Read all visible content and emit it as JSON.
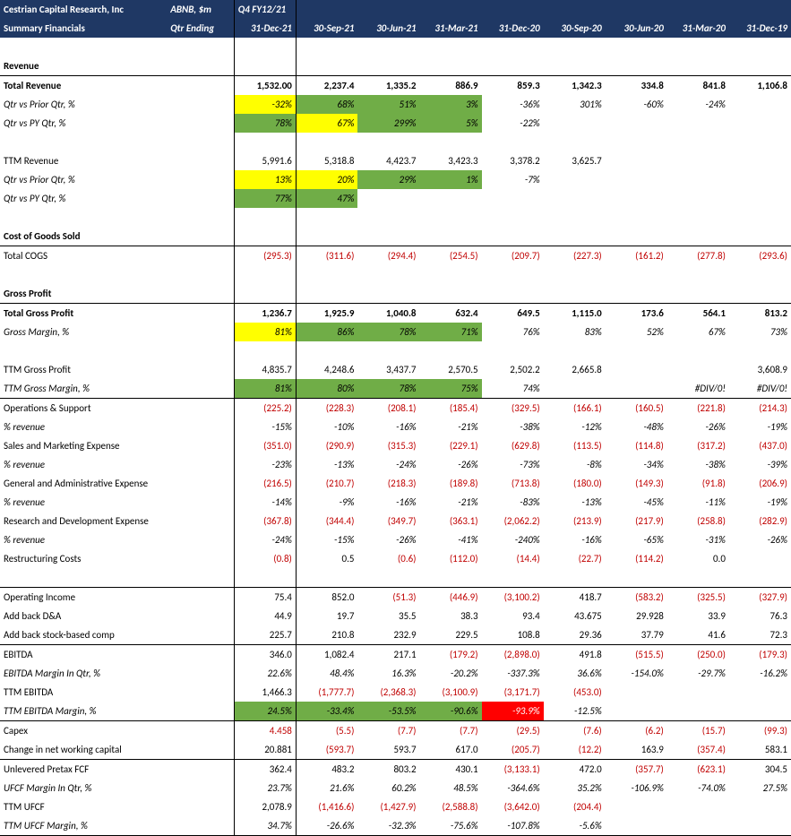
{
  "header": {
    "company": "Cestrian Capital Research, Inc",
    "ticker": "ABNB, $m",
    "subtitle": "Summary Financials",
    "qtr_ending": "Qtr Ending",
    "q4": "Q4 FY12/21",
    "dates": [
      "31-Dec-21",
      "30-Sep-21",
      "30-Jun-21",
      "31-Mar-21",
      "31-Dec-20",
      "30-Sep-20",
      "30-Jun-20",
      "31-Mar-20",
      "31-Dec-19"
    ]
  },
  "sections": {
    "revenue": "Revenue",
    "cogs": "Cost of Goods Sold",
    "gp": "Gross Profit"
  },
  "rows": {
    "total_revenue": {
      "label": "Total Revenue",
      "vals": [
        "1,532.00",
        "2,237.4",
        "1,335.2",
        "886.9",
        "859.3",
        "1,342.3",
        "334.8",
        "841.8",
        "1,106.8"
      ],
      "neg": [
        0,
        0,
        0,
        0,
        0,
        0,
        0,
        0,
        0
      ],
      "bold": 1
    },
    "rev_qoq": {
      "label": "Qtr vs Prior Qtr, %",
      "vals": [
        "-32%",
        "68%",
        "51%",
        "3%",
        "-36%",
        "301%",
        "-60%",
        "-24%",
        ""
      ],
      "neg": [
        0,
        0,
        0,
        0,
        0,
        0,
        0,
        0,
        0
      ],
      "ital": 1,
      "hl": [
        "yellow",
        "green",
        "green",
        "green",
        "",
        "",
        "",
        "",
        ""
      ]
    },
    "rev_yoy": {
      "label": "Qtr vs PY Qtr, %",
      "vals": [
        "78%",
        "67%",
        "299%",
        "5%",
        "-22%",
        "",
        "",
        "",
        ""
      ],
      "neg": [
        0,
        0,
        0,
        0,
        0,
        0,
        0,
        0,
        0
      ],
      "ital": 1,
      "hl": [
        "green",
        "yellow",
        "green",
        "green",
        "",
        "",
        "",
        "",
        ""
      ]
    },
    "ttm_rev": {
      "label": "TTM Revenue",
      "vals": [
        "5,991.6",
        "5,318.8",
        "4,423.7",
        "3,423.3",
        "3,378.2",
        "3,625.7",
        "",
        "",
        ""
      ],
      "neg": [
        0,
        0,
        0,
        0,
        0,
        0,
        0,
        0,
        0
      ]
    },
    "ttm_rev_qoq": {
      "label": "Qtr vs Prior Qtr, %",
      "vals": [
        "13%",
        "20%",
        "29%",
        "1%",
        "-7%",
        "",
        "",
        "",
        ""
      ],
      "neg": [
        0,
        0,
        0,
        0,
        0,
        0,
        0,
        0,
        0
      ],
      "ital": 1,
      "hl": [
        "yellow",
        "yellow",
        "green",
        "green",
        "",
        "",
        "",
        "",
        ""
      ]
    },
    "ttm_rev_yoy": {
      "label": "Qtr vs PY Qtr, %",
      "vals": [
        "77%",
        "47%",
        "",
        "",
        "",
        "",
        "",
        "",
        ""
      ],
      "neg": [
        0,
        0,
        0,
        0,
        0,
        0,
        0,
        0,
        0
      ],
      "ital": 1,
      "hl": [
        "green",
        "green",
        "",
        "",
        "",
        "",
        "",
        "",
        ""
      ]
    },
    "total_cogs": {
      "label": "Total COGS",
      "vals": [
        "(295.3)",
        "(311.6)",
        "(294.4)",
        "(254.5)",
        "(209.7)",
        "(227.3)",
        "(161.2)",
        "(277.8)",
        "(293.6)"
      ],
      "neg": [
        1,
        1,
        1,
        1,
        1,
        1,
        1,
        1,
        1
      ]
    },
    "total_gp": {
      "label": "Total Gross Profit",
      "vals": [
        "1,236.7",
        "1,925.9",
        "1,040.8",
        "632.4",
        "649.5",
        "1,115.0",
        "173.6",
        "564.1",
        "813.2"
      ],
      "neg": [
        0,
        0,
        0,
        0,
        0,
        0,
        0,
        0,
        0
      ],
      "bold": 1
    },
    "gm": {
      "label": "Gross Margin, %",
      "vals": [
        "81%",
        "86%",
        "78%",
        "71%",
        "76%",
        "83%",
        "52%",
        "67%",
        "73%"
      ],
      "neg": [
        0,
        0,
        0,
        0,
        0,
        0,
        0,
        0,
        0
      ],
      "ital": 1,
      "hl": [
        "yellow",
        "green",
        "green",
        "green",
        "",
        "",
        "",
        "",
        ""
      ]
    },
    "ttm_gp": {
      "label": "TTM Gross Profit",
      "vals": [
        "4,835.7",
        "4,248.6",
        "3,437.7",
        "2,570.5",
        "2,502.2",
        "2,665.8",
        "",
        "",
        "3,608.9"
      ],
      "neg": [
        0,
        0,
        0,
        0,
        0,
        0,
        0,
        0,
        0
      ]
    },
    "ttm_gm": {
      "label": "TTM Gross Margin, %",
      "vals": [
        "81%",
        "80%",
        "78%",
        "75%",
        "74%",
        "",
        "",
        "#DIV/0!",
        "#DIV/0!"
      ],
      "neg": [
        0,
        0,
        0,
        0,
        0,
        0,
        0,
        0,
        0
      ],
      "ital": 1,
      "hl": [
        "green",
        "green",
        "green",
        "green",
        "",
        "",
        "",
        "",
        ""
      ]
    },
    "ops": {
      "label": "Operations & Support",
      "vals": [
        "(225.2)",
        "(228.3)",
        "(208.1)",
        "(185.4)",
        "(329.5)",
        "(166.1)",
        "(160.5)",
        "(221.8)",
        "(214.3)"
      ],
      "neg": [
        1,
        1,
        1,
        1,
        1,
        1,
        1,
        1,
        1
      ]
    },
    "ops_pct": {
      "label": "% revenue",
      "vals": [
        "-15%",
        "-10%",
        "-16%",
        "-21%",
        "-38%",
        "-12%",
        "-48%",
        "-26%",
        "-19%"
      ],
      "neg": [
        0,
        0,
        0,
        0,
        0,
        0,
        0,
        0,
        0
      ],
      "ital": 1
    },
    "sm": {
      "label": "Sales and Marketing Expense",
      "vals": [
        "(351.0)",
        "(290.9)",
        "(315.3)",
        "(229.1)",
        "(629.8)",
        "(113.5)",
        "(114.8)",
        "(317.2)",
        "(437.0)"
      ],
      "neg": [
        1,
        1,
        1,
        1,
        1,
        1,
        1,
        1,
        1
      ]
    },
    "sm_pct": {
      "label": "% revenue",
      "vals": [
        "-23%",
        "-13%",
        "-24%",
        "-26%",
        "-73%",
        "-8%",
        "-34%",
        "-38%",
        "-39%"
      ],
      "neg": [
        0,
        0,
        0,
        0,
        0,
        0,
        0,
        0,
        0
      ],
      "ital": 1
    },
    "ga": {
      "label": "General and Administrative Expense",
      "vals": [
        "(216.5)",
        "(210.7)",
        "(218.3)",
        "(189.8)",
        "(713.8)",
        "(180.0)",
        "(149.3)",
        "(91.8)",
        "(206.9)"
      ],
      "neg": [
        1,
        1,
        1,
        1,
        1,
        1,
        1,
        1,
        1
      ]
    },
    "ga_pct": {
      "label": "% revenue",
      "vals": [
        "-14%",
        "-9%",
        "-16%",
        "-21%",
        "-83%",
        "-13%",
        "-45%",
        "-11%",
        "-19%"
      ],
      "neg": [
        0,
        0,
        0,
        0,
        0,
        0,
        0,
        0,
        0
      ],
      "ital": 1
    },
    "rd": {
      "label": "Research and Development Expense",
      "vals": [
        "(367.8)",
        "(344.4)",
        "(349.7)",
        "(363.1)",
        "(2,062.2)",
        "(213.9)",
        "(217.9)",
        "(258.8)",
        "(282.9)"
      ],
      "neg": [
        1,
        1,
        1,
        1,
        1,
        1,
        1,
        1,
        1
      ]
    },
    "rd_pct": {
      "label": "% revenue",
      "vals": [
        "-24%",
        "-15%",
        "-26%",
        "-41%",
        "-240%",
        "-16%",
        "-65%",
        "-31%",
        "-26%"
      ],
      "neg": [
        0,
        0,
        0,
        0,
        0,
        0,
        0,
        0,
        0
      ],
      "ital": 1
    },
    "restr": {
      "label": "Restructuring Costs",
      "vals": [
        "(0.8)",
        "0.5",
        "(0.6)",
        "(112.0)",
        "(14.4)",
        "(22.7)",
        "(114.2)",
        "0.0",
        ""
      ],
      "neg": [
        1,
        0,
        1,
        1,
        1,
        1,
        1,
        0,
        0
      ]
    },
    "opinc": {
      "label": "Operating Income",
      "vals": [
        "75.4",
        "852.0",
        "(51.3)",
        "(446.9)",
        "(3,100.2)",
        "418.7",
        "(583.2)",
        "(325.5)",
        "(327.9)"
      ],
      "neg": [
        0,
        0,
        1,
        1,
        1,
        0,
        1,
        1,
        1
      ]
    },
    "da": {
      "label": "Add back D&A",
      "vals": [
        "44.9",
        "19.7",
        "35.5",
        "38.3",
        "93.4",
        "43.675",
        "29.928",
        "33.9",
        "76.3"
      ],
      "neg": [
        0,
        0,
        0,
        0,
        0,
        0,
        0,
        0,
        0
      ]
    },
    "sbc": {
      "label": "Add back stock-based comp",
      "vals": [
        "225.7",
        "210.8",
        "232.9",
        "229.5",
        "108.8",
        "29.36",
        "37.79",
        "41.6",
        "72.3"
      ],
      "neg": [
        0,
        0,
        0,
        0,
        0,
        0,
        0,
        0,
        0
      ]
    },
    "ebitda": {
      "label": "EBITDA",
      "vals": [
        "346.0",
        "1,082.4",
        "217.1",
        "(179.2)",
        "(2,898.0)",
        "491.8",
        "(515.5)",
        "(250.0)",
        "(179.3)"
      ],
      "neg": [
        0,
        0,
        0,
        1,
        1,
        0,
        1,
        1,
        1
      ]
    },
    "ebitda_m": {
      "label": "EBITDA Margin In Qtr, %",
      "vals": [
        "22.6%",
        "48.4%",
        "16.3%",
        "-20.2%",
        "-337.3%",
        "36.6%",
        "-154.0%",
        "-29.7%",
        "-16.2%"
      ],
      "neg": [
        0,
        0,
        0,
        0,
        0,
        0,
        0,
        0,
        0
      ],
      "ital": 1
    },
    "ttm_ebitda": {
      "label": "TTM EBITDA",
      "vals": [
        "1,466.3",
        "(1,777.7)",
        "(2,368.3)",
        "(3,100.9)",
        "(3,171.7)",
        "(453.0)",
        "",
        "",
        ""
      ],
      "neg": [
        0,
        1,
        1,
        1,
        1,
        1,
        0,
        0,
        0
      ]
    },
    "ttm_ebitda_m": {
      "label": "TTM EBITDA Margin, %",
      "vals": [
        "24.5%",
        "-33.4%",
        "-53.5%",
        "-90.6%",
        "-93.9%",
        "-12.5%",
        "",
        "",
        ""
      ],
      "neg": [
        0,
        0,
        0,
        0,
        0,
        0,
        0,
        0,
        0
      ],
      "ital": 1,
      "hl": [
        "green",
        "green",
        "green",
        "green",
        "red",
        "",
        "",
        "",
        ""
      ]
    },
    "capex": {
      "label": "Capex",
      "vals": [
        "4.458",
        "(5.5)",
        "(7.7)",
        "(7.7)",
        "(29.5)",
        "(7.6)",
        "(6.2)",
        "(15.7)",
        "(99.3)"
      ],
      "neg": [
        1,
        1,
        1,
        1,
        1,
        1,
        1,
        1,
        1
      ]
    },
    "nwc": {
      "label": "Change in net working capital",
      "vals": [
        "20.881",
        "(593.7)",
        "593.7",
        "617.0",
        "(205.7)",
        "(12.2)",
        "163.9",
        "(357.4)",
        "583.1"
      ],
      "neg": [
        0,
        1,
        0,
        0,
        1,
        1,
        0,
        1,
        0
      ]
    },
    "ufcf": {
      "label": "Unlevered Pretax FCF",
      "vals": [
        "362.4",
        "483.2",
        "803.2",
        "430.1",
        "(3,133.1)",
        "472.0",
        "(357.7)",
        "(623.1)",
        "304.5"
      ],
      "neg": [
        0,
        0,
        0,
        0,
        1,
        0,
        1,
        1,
        0
      ]
    },
    "ufcf_m": {
      "label": "UFCF Margin In Qtr, %",
      "vals": [
        "23.7%",
        "21.6%",
        "60.2%",
        "48.5%",
        "-364.6%",
        "35.2%",
        "-106.9%",
        "-74.0%",
        "27.5%"
      ],
      "neg": [
        0,
        0,
        0,
        0,
        0,
        0,
        0,
        0,
        0
      ],
      "ital": 1
    },
    "ttm_ufcf": {
      "label": "TTM UFCF",
      "vals": [
        "2,078.9",
        "(1,416.6)",
        "(1,427.9)",
        "(2,588.8)",
        "(3,642.0)",
        "(204.4)",
        "",
        "",
        ""
      ],
      "neg": [
        0,
        1,
        1,
        1,
        1,
        1,
        0,
        0,
        0
      ]
    },
    "ttm_ufcf_m": {
      "label": "TTM UFCF Margin, %",
      "vals": [
        "34.7%",
        "-26.6%",
        "-32.3%",
        "-75.6%",
        "-107.8%",
        "-5.6%",
        "",
        "",
        ""
      ],
      "neg": [
        0,
        0,
        0,
        0,
        0,
        0,
        0,
        0,
        0
      ],
      "ital": 1
    }
  },
  "row_order": [
    {
      "type": "section",
      "key": "revenue",
      "underline": 1
    },
    {
      "type": "row",
      "key": "total_revenue"
    },
    {
      "type": "row",
      "key": "rev_qoq"
    },
    {
      "type": "row",
      "key": "rev_yoy"
    },
    {
      "type": "blank"
    },
    {
      "type": "row",
      "key": "ttm_rev"
    },
    {
      "type": "row",
      "key": "ttm_rev_qoq"
    },
    {
      "type": "row",
      "key": "ttm_rev_yoy"
    },
    {
      "type": "blank"
    },
    {
      "type": "section",
      "key": "cogs",
      "underline": 1
    },
    {
      "type": "row",
      "key": "total_cogs"
    },
    {
      "type": "blank"
    },
    {
      "type": "section",
      "key": "gp",
      "underline": 1
    },
    {
      "type": "row",
      "key": "total_gp"
    },
    {
      "type": "row",
      "key": "gm"
    },
    {
      "type": "blank"
    },
    {
      "type": "row",
      "key": "ttm_gp"
    },
    {
      "type": "row",
      "key": "ttm_gm"
    },
    {
      "type": "row",
      "key": "ops",
      "topline": 1
    },
    {
      "type": "row",
      "key": "ops_pct"
    },
    {
      "type": "row",
      "key": "sm"
    },
    {
      "type": "row",
      "key": "sm_pct"
    },
    {
      "type": "row",
      "key": "ga"
    },
    {
      "type": "row",
      "key": "ga_pct"
    },
    {
      "type": "row",
      "key": "rd"
    },
    {
      "type": "row",
      "key": "rd_pct"
    },
    {
      "type": "row",
      "key": "restr"
    },
    {
      "type": "blank"
    },
    {
      "type": "row",
      "key": "opinc",
      "topline": 1
    },
    {
      "type": "row",
      "key": "da"
    },
    {
      "type": "row",
      "key": "sbc"
    },
    {
      "type": "row",
      "key": "ebitda",
      "topline": 1
    },
    {
      "type": "row",
      "key": "ebitda_m"
    },
    {
      "type": "row",
      "key": "ttm_ebitda"
    },
    {
      "type": "row",
      "key": "ttm_ebitda_m"
    },
    {
      "type": "row",
      "key": "capex",
      "topline": 1
    },
    {
      "type": "row",
      "key": "nwc"
    },
    {
      "type": "row",
      "key": "ufcf",
      "topline": 1
    },
    {
      "type": "row",
      "key": "ufcf_m"
    },
    {
      "type": "row",
      "key": "ttm_ufcf"
    },
    {
      "type": "row",
      "key": "ttm_ufcf_m",
      "underline": 1
    }
  ]
}
